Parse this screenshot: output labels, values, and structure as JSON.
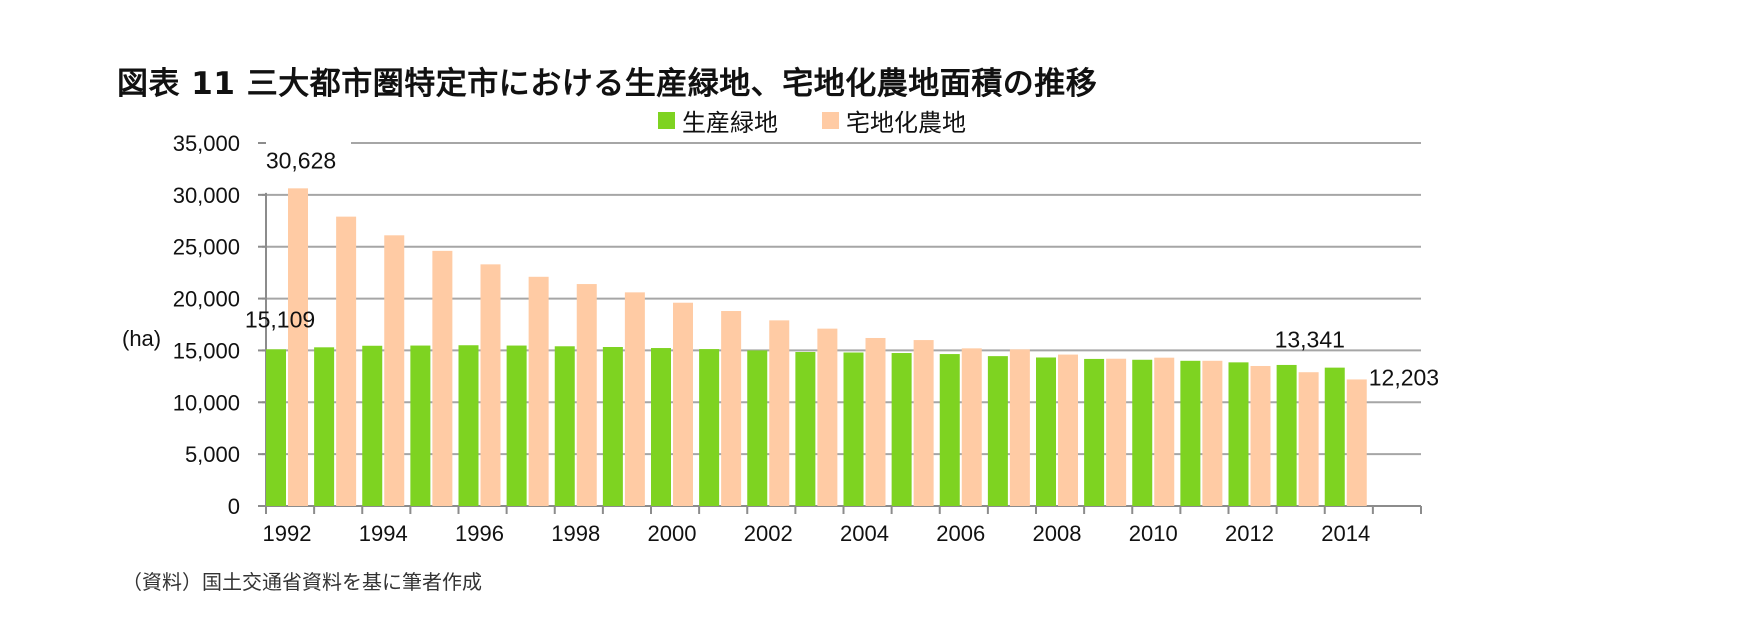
{
  "title": "図表 11 三大都市圏特定市における生産緑地、宅地化農地面積の推移",
  "source": "（資料）国土交通省資料を基に筆者作成",
  "colors": {
    "green": "#7ED321",
    "peach": "#FFCBA4",
    "grid": "#A6A6A6",
    "axis": "#8C8C8C"
  },
  "chart_data": {
    "type": "bar",
    "title": "図表 11 三大都市圏特定市における生産緑地、宅地化農地面積の推移",
    "ylabel": "(ha)",
    "xlabel": "",
    "ylim": [
      0,
      35000
    ],
    "yticks": [
      0,
      5000,
      10000,
      15000,
      20000,
      25000,
      30000,
      35000
    ],
    "ytick_labels": [
      "0",
      "5,000",
      "10,000",
      "15,000",
      "20,000",
      "25,000",
      "30,000",
      "35,000"
    ],
    "categories": [
      "1992",
      "1993",
      "1994",
      "1995",
      "1996",
      "1997",
      "1998",
      "1999",
      "2000",
      "2001",
      "2002",
      "2003",
      "2004",
      "2005",
      "2006",
      "2007",
      "2008",
      "2009",
      "2010",
      "2011",
      "2012",
      "2013",
      "2014"
    ],
    "xtick_labels": [
      "1992",
      "",
      "1994",
      "",
      "1996",
      "",
      "1998",
      "",
      "2000",
      "",
      "2002",
      "",
      "2004",
      "",
      "2006",
      "",
      "2008",
      "",
      "2010",
      "",
      "2012",
      "",
      "2014"
    ],
    "grid": true,
    "legend_position": "top-center",
    "series": [
      {
        "name": "生産緑地",
        "color": "#7ED321",
        "values": [
          15109,
          15300,
          15450,
          15470,
          15500,
          15470,
          15400,
          15330,
          15230,
          15130,
          15000,
          14850,
          14800,
          14750,
          14650,
          14450,
          14320,
          14180,
          14100,
          14000,
          13850,
          13600,
          13341
        ]
      },
      {
        "name": "宅地化農地",
        "color": "#FFCBA4",
        "values": [
          30628,
          27900,
          26100,
          24600,
          23300,
          22100,
          21400,
          20600,
          19600,
          18800,
          17900,
          17100,
          16200,
          16000,
          15200,
          15100,
          14600,
          14200,
          14300,
          14000,
          13500,
          12900,
          12203
        ]
      }
    ],
    "annotations": [
      {
        "text": "30,628",
        "series": 1,
        "index": 0
      },
      {
        "text": "15,109",
        "series": 0,
        "index": 0
      },
      {
        "text": "13,341",
        "series": 0,
        "index": 22
      },
      {
        "text": "12,203",
        "series": 1,
        "index": 22
      }
    ]
  }
}
